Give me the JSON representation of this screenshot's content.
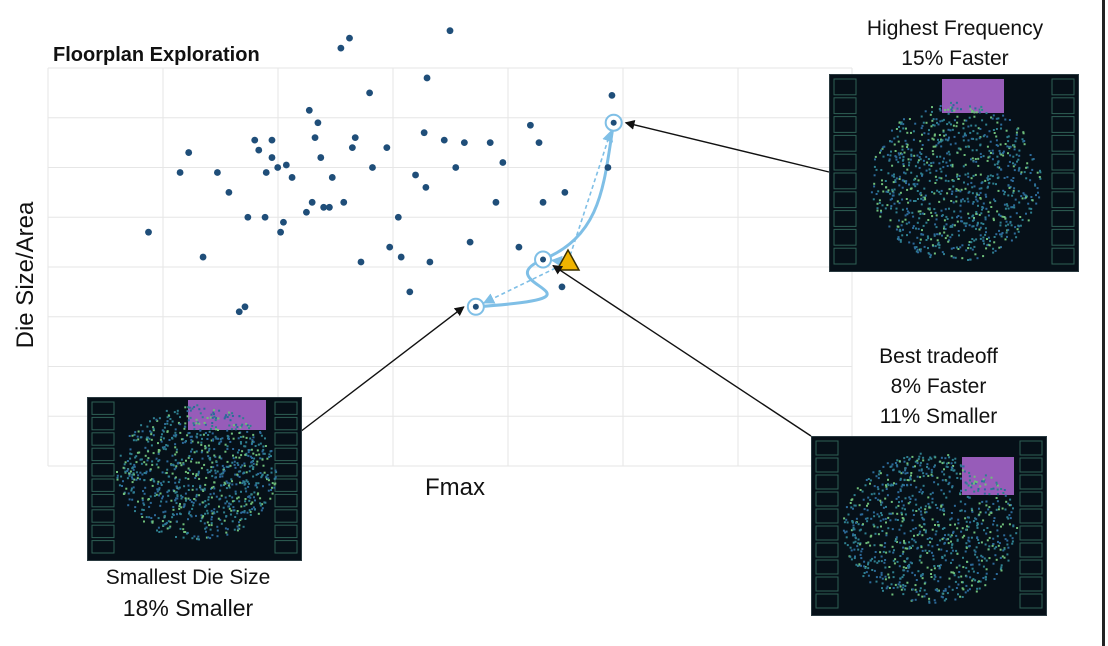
{
  "chart_data": {
    "type": "scatter",
    "title": "Floorplan Exploration",
    "xlabel": "Fmax",
    "ylabel": "Die Size/Area",
    "grid": true,
    "tick_labels": "none",
    "series": [
      {
        "points": [
          [
            1.75,
            4.7
          ],
          [
            2.3,
            5.9
          ],
          [
            2.45,
            6.3
          ],
          [
            2.7,
            4.2
          ],
          [
            2.95,
            5.9
          ],
          [
            3.15,
            5.5
          ],
          [
            3.33,
            3.1
          ],
          [
            3.43,
            3.2
          ],
          [
            3.48,
            5.0
          ],
          [
            3.6,
            6.55
          ],
          [
            3.67,
            6.35
          ],
          [
            3.9,
            6.2
          ],
          [
            3.78,
            5.0
          ],
          [
            3.8,
            5.9
          ],
          [
            3.9,
            6.55
          ],
          [
            4.0,
            6.0
          ],
          [
            4.05,
            4.7
          ],
          [
            4.1,
            4.9
          ],
          [
            4.15,
            6.05
          ],
          [
            4.25,
            5.8
          ],
          [
            4.5,
            5.1
          ],
          [
            4.55,
            7.15
          ],
          [
            4.6,
            5.3
          ],
          [
            4.65,
            6.6
          ],
          [
            4.75,
            6.2
          ],
          [
            4.7,
            6.9
          ],
          [
            4.8,
            5.2
          ],
          [
            4.9,
            5.2
          ],
          [
            4.95,
            5.8
          ],
          [
            5.1,
            8.4
          ],
          [
            5.15,
            5.3
          ],
          [
            5.25,
            8.6
          ],
          [
            5.3,
            6.4
          ],
          [
            5.35,
            6.6
          ],
          [
            5.45,
            4.1
          ],
          [
            5.6,
            7.5
          ],
          [
            5.65,
            6.0
          ],
          [
            5.9,
            6.4
          ],
          [
            5.95,
            4.4
          ],
          [
            6.1,
            5.0
          ],
          [
            6.15,
            4.2
          ],
          [
            6.3,
            3.5
          ],
          [
            6.55,
            6.7
          ],
          [
            6.6,
            7.8
          ],
          [
            6.65,
            4.1
          ],
          [
            6.9,
            6.55
          ],
          [
            7.0,
            8.75
          ],
          [
            7.1,
            6.0
          ],
          [
            7.25,
            6.5
          ],
          [
            6.4,
            5.85
          ],
          [
            6.58,
            5.6
          ],
          [
            7.35,
            4.5
          ],
          [
            7.7,
            6.5
          ],
          [
            7.8,
            5.3
          ],
          [
            7.92,
            6.1
          ],
          [
            8.2,
            4.4
          ],
          [
            8.4,
            6.85
          ],
          [
            8.55,
            6.5
          ],
          [
            8.6,
            4.2
          ],
          [
            8.62,
            5.3
          ],
          [
            9.0,
            5.5
          ],
          [
            8.95,
            3.6
          ],
          [
            9.75,
            6.0
          ],
          [
            9.82,
            7.45
          ]
        ]
      }
    ],
    "annotations": {
      "origin_marker": "triangle",
      "highlighted_points": [
        {
          "x": 7.45,
          "y": 3.2,
          "label": "Smallest Die Size",
          "note": "18% Smaller"
        },
        {
          "x": 9.85,
          "y": 6.9,
          "label": "Highest Frequency",
          "note": "15% Faster"
        },
        {
          "x": 8.62,
          "y": 4.15,
          "label": "Best tradeoff",
          "note": "8% Faster",
          "note2": "11% Smaller"
        }
      ]
    },
    "colors": {
      "points": "#1f4e79",
      "pareto": "#7fbfe6",
      "triangle": "#f0b400",
      "grid": "#e6e6e6",
      "floorplan_bg": "#061018",
      "floorplan_cells": "#2e7f8f",
      "floorplan_highlight": "#b16ad6"
    }
  }
}
